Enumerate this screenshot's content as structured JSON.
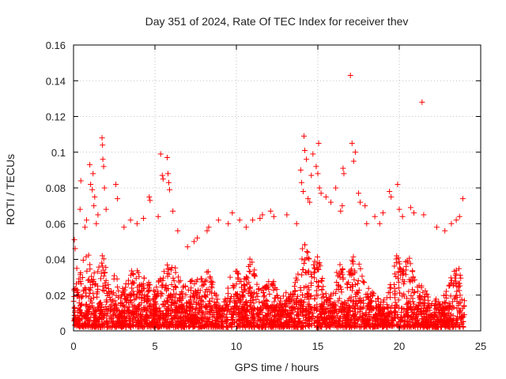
{
  "chart_data": {
    "type": "scatter",
    "title": "Day 351 of 2024, Rate Of TEC Index for receiver thev",
    "xlabel": "GPS time / hours",
    "ylabel": "ROTI / TECUs",
    "xlim": [
      0,
      25
    ],
    "ylim": [
      0,
      0.16
    ],
    "xticks": [
      0,
      5,
      10,
      15,
      20,
      25
    ],
    "yticks": [
      0,
      0.02,
      0.04,
      0.06,
      0.08,
      0.1,
      0.12,
      0.14,
      0.16
    ],
    "xtick_labels": [
      "0",
      "5",
      "10",
      "15",
      "20",
      "25"
    ],
    "ytick_labels": [
      "0",
      "0.02",
      "0.04",
      "0.06",
      "0.08",
      "0.1",
      "0.12",
      "0.14",
      "0.16"
    ],
    "grid": true,
    "marker": "+",
    "color": "#ff0000",
    "sampled_points": [
      {
        "x": 0.05,
        "y": 0.051
      },
      {
        "x": 0.1,
        "y": 0.046
      },
      {
        "x": 0.2,
        "y": 0.035
      },
      {
        "x": 0.45,
        "y": 0.084
      },
      {
        "x": 0.4,
        "y": 0.068
      },
      {
        "x": 0.7,
        "y": 0.058
      },
      {
        "x": 0.8,
        "y": 0.062
      },
      {
        "x": 1.0,
        "y": 0.093
      },
      {
        "x": 1.05,
        "y": 0.082
      },
      {
        "x": 1.15,
        "y": 0.079
      },
      {
        "x": 1.2,
        "y": 0.088
      },
      {
        "x": 1.25,
        "y": 0.07
      },
      {
        "x": 1.3,
        "y": 0.075
      },
      {
        "x": 1.4,
        "y": 0.06
      },
      {
        "x": 1.5,
        "y": 0.065
      },
      {
        "x": 1.75,
        "y": 0.108
      },
      {
        "x": 1.78,
        "y": 0.104
      },
      {
        "x": 1.8,
        "y": 0.096
      },
      {
        "x": 1.85,
        "y": 0.092
      },
      {
        "x": 1.9,
        "y": 0.08
      },
      {
        "x": 2.0,
        "y": 0.068
      },
      {
        "x": 2.6,
        "y": 0.082
      },
      {
        "x": 2.7,
        "y": 0.074
      },
      {
        "x": 3.1,
        "y": 0.058
      },
      {
        "x": 3.5,
        "y": 0.062
      },
      {
        "x": 3.9,
        "y": 0.06
      },
      {
        "x": 4.3,
        "y": 0.063
      },
      {
        "x": 4.65,
        "y": 0.075
      },
      {
        "x": 4.7,
        "y": 0.073
      },
      {
        "x": 5.2,
        "y": 0.064
      },
      {
        "x": 5.35,
        "y": 0.099
      },
      {
        "x": 5.45,
        "y": 0.087
      },
      {
        "x": 5.5,
        "y": 0.085
      },
      {
        "x": 5.75,
        "y": 0.097
      },
      {
        "x": 5.8,
        "y": 0.088
      },
      {
        "x": 5.85,
        "y": 0.083
      },
      {
        "x": 5.9,
        "y": 0.079
      },
      {
        "x": 6.1,
        "y": 0.067
      },
      {
        "x": 6.4,
        "y": 0.056
      },
      {
        "x": 7.0,
        "y": 0.047
      },
      {
        "x": 7.4,
        "y": 0.05
      },
      {
        "x": 7.6,
        "y": 0.052
      },
      {
        "x": 8.2,
        "y": 0.056
      },
      {
        "x": 8.3,
        "y": 0.058
      },
      {
        "x": 8.9,
        "y": 0.062
      },
      {
        "x": 9.5,
        "y": 0.06
      },
      {
        "x": 9.75,
        "y": 0.066
      },
      {
        "x": 10.2,
        "y": 0.062
      },
      {
        "x": 10.6,
        "y": 0.058
      },
      {
        "x": 11.0,
        "y": 0.062
      },
      {
        "x": 11.45,
        "y": 0.063
      },
      {
        "x": 11.6,
        "y": 0.065
      },
      {
        "x": 12.1,
        "y": 0.067
      },
      {
        "x": 12.3,
        "y": 0.064
      },
      {
        "x": 13.1,
        "y": 0.065
      },
      {
        "x": 13.7,
        "y": 0.06
      },
      {
        "x": 13.95,
        "y": 0.09
      },
      {
        "x": 14.0,
        "y": 0.083
      },
      {
        "x": 14.1,
        "y": 0.078
      },
      {
        "x": 14.15,
        "y": 0.109
      },
      {
        "x": 14.2,
        "y": 0.101
      },
      {
        "x": 14.3,
        "y": 0.096
      },
      {
        "x": 14.4,
        "y": 0.074
      },
      {
        "x": 14.5,
        "y": 0.072
      },
      {
        "x": 14.6,
        "y": 0.087
      },
      {
        "x": 14.7,
        "y": 0.099
      },
      {
        "x": 14.9,
        "y": 0.092
      },
      {
        "x": 15.0,
        "y": 0.088
      },
      {
        "x": 15.05,
        "y": 0.105
      },
      {
        "x": 15.1,
        "y": 0.08
      },
      {
        "x": 15.2,
        "y": 0.077
      },
      {
        "x": 15.5,
        "y": 0.075
      },
      {
        "x": 15.8,
        "y": 0.072
      },
      {
        "x": 16.1,
        "y": 0.08
      },
      {
        "x": 16.4,
        "y": 0.067
      },
      {
        "x": 16.5,
        "y": 0.07
      },
      {
        "x": 16.55,
        "y": 0.091
      },
      {
        "x": 16.6,
        "y": 0.088
      },
      {
        "x": 17.0,
        "y": 0.143
      },
      {
        "x": 17.1,
        "y": 0.105
      },
      {
        "x": 17.2,
        "y": 0.095
      },
      {
        "x": 17.3,
        "y": 0.1
      },
      {
        "x": 17.5,
        "y": 0.077
      },
      {
        "x": 17.6,
        "y": 0.072
      },
      {
        "x": 17.9,
        "y": 0.07
      },
      {
        "x": 18.0,
        "y": 0.06
      },
      {
        "x": 18.5,
        "y": 0.064
      },
      {
        "x": 18.8,
        "y": 0.06
      },
      {
        "x": 19.0,
        "y": 0.066
      },
      {
        "x": 19.4,
        "y": 0.078
      },
      {
        "x": 19.5,
        "y": 0.075
      },
      {
        "x": 19.9,
        "y": 0.082
      },
      {
        "x": 20.0,
        "y": 0.068
      },
      {
        "x": 20.2,
        "y": 0.064
      },
      {
        "x": 20.7,
        "y": 0.069
      },
      {
        "x": 20.9,
        "y": 0.066
      },
      {
        "x": 21.4,
        "y": 0.128
      },
      {
        "x": 21.5,
        "y": 0.065
      },
      {
        "x": 22.3,
        "y": 0.058
      },
      {
        "x": 22.8,
        "y": 0.056
      },
      {
        "x": 23.2,
        "y": 0.06
      },
      {
        "x": 23.5,
        "y": 0.062
      },
      {
        "x": 23.7,
        "y": 0.064
      },
      {
        "x": 23.9,
        "y": 0.074
      }
    ]
  }
}
